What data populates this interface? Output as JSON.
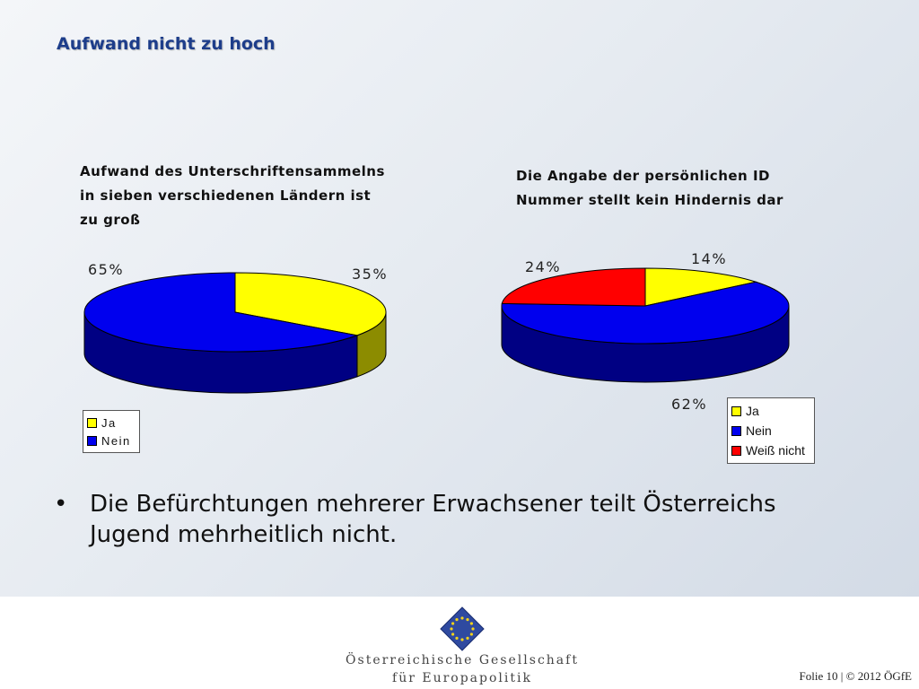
{
  "slide": {
    "title": "Aufwand nicht zu hoch",
    "bullet": "Die Befürchtungen mehrerer Erwachsener teilt Österreichs Jugend mehrheitlich nicht.",
    "bullet_symbol": "•"
  },
  "footer": {
    "org_name_line1": "Österreichische Gesellschaft",
    "org_name_line2": "für Europapolitik",
    "slide_number": "Folie 10 | © 2012 ÖGfE"
  },
  "colors": {
    "ja": "#ffff00",
    "nein": "#0000ee",
    "weiss_nicht": "#ff0000",
    "title": "#1d3d8a"
  },
  "chart_data": [
    {
      "type": "pie",
      "title_lines": [
        "Aufwand des Unterschriftensammelns",
        "in sieben verschiedenen Ländern ist",
        "zu groß"
      ],
      "categories": [
        "Ja",
        "Nein"
      ],
      "values": [
        35,
        65
      ],
      "data_labels": [
        "35%",
        "65%"
      ],
      "legend": [
        "Ja",
        "Nein"
      ],
      "legend_placement": "bottom-left",
      "style": "3d"
    },
    {
      "type": "pie",
      "title_lines": [
        "Die Angabe der persönlichen ID",
        "Nummer stellt kein Hindernis dar"
      ],
      "categories": [
        "Ja",
        "Nein",
        "Weiß nicht"
      ],
      "values": [
        14,
        62,
        24
      ],
      "data_labels": [
        "14%",
        "62%",
        "24%"
      ],
      "legend": [
        "Ja",
        "Nein",
        "Weiß nicht"
      ],
      "legend_placement": "bottom-right",
      "style": "3d"
    }
  ]
}
